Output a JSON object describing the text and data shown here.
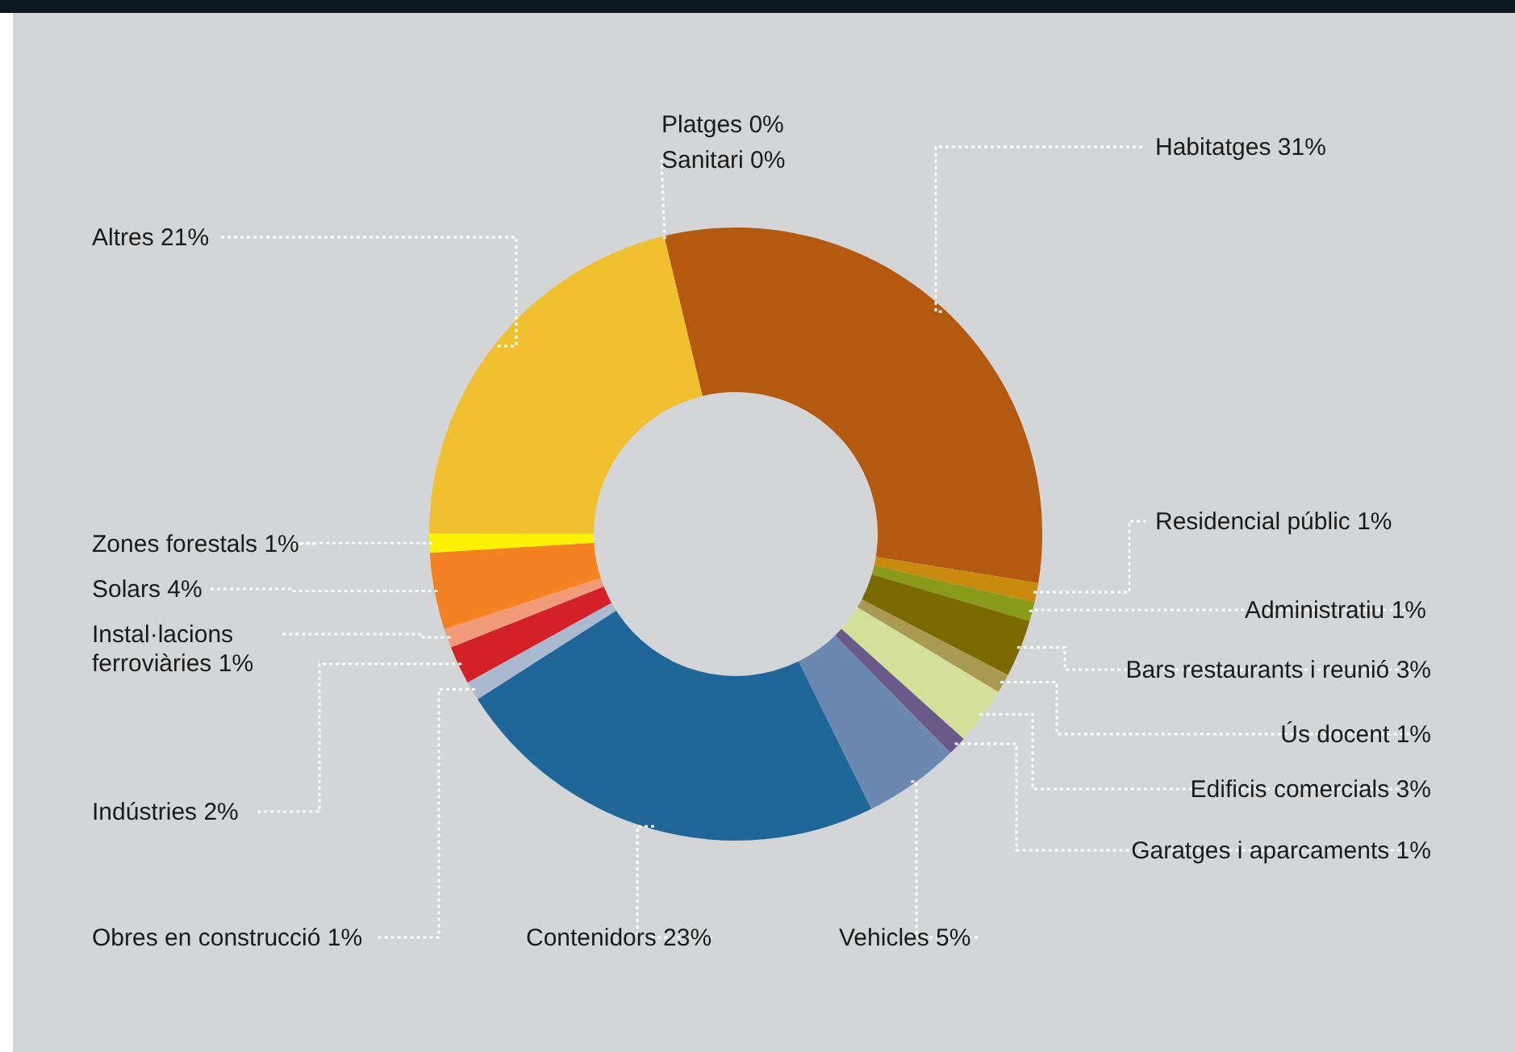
{
  "chart_data": {
    "type": "donut",
    "categories": [
      "Platges",
      "Sanitari",
      "Habitatges",
      "Residencial públic",
      "Administratiu",
      "Bars restaurants i reunió",
      "Ús docent",
      "Edificis comercials",
      "Garatges i aparcaments",
      "Vehicles",
      "Contenidors",
      "Obres en construcció",
      "Indústries",
      "Instal·lacions ferroviàries",
      "Solars",
      "Zones forestals",
      "Altres"
    ],
    "values": [
      0,
      0,
      31,
      1,
      1,
      3,
      1,
      3,
      1,
      5,
      23,
      1,
      2,
      1,
      4,
      1,
      21
    ],
    "value_labels": [
      "0%",
      "0%",
      "31%",
      "1%",
      "1%",
      "3%",
      "1%",
      "3%",
      "1%",
      "5%",
      "23%",
      "1%",
      "2%",
      "1%",
      "4%",
      "1%",
      "21%"
    ],
    "colors": [
      "#c06010",
      "#c06010",
      "#b35a10",
      "#c98a10",
      "#8a9a1a",
      "#7a6a00",
      "#a89a50",
      "#d4e09a",
      "#6a5a8a",
      "#6a88b0",
      "#1f6699",
      "#aab8d0",
      "#d42027",
      "#f09a7a",
      "#f58220",
      "#fff200",
      "#f0c030"
    ]
  }
}
